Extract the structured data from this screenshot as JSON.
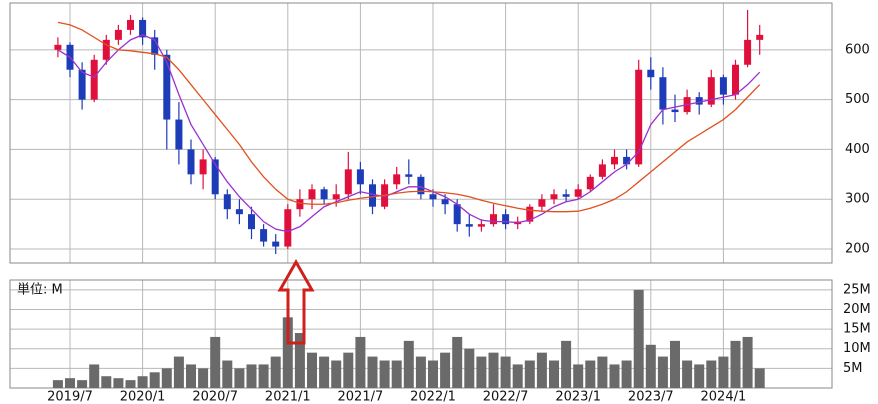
{
  "chart_data": {
    "type": "candlestick",
    "x": [
      "2019/6",
      "2019/7",
      "2019/8",
      "2019/9",
      "2019/10",
      "2019/11",
      "2019/12",
      "2020/1",
      "2020/2",
      "2020/3",
      "2020/4",
      "2020/5",
      "2020/6",
      "2020/7",
      "2020/8",
      "2020/9",
      "2020/10",
      "2020/11",
      "2020/12",
      "2021/1",
      "2021/2",
      "2021/3",
      "2021/4",
      "2021/5",
      "2021/6",
      "2021/7",
      "2021/8",
      "2021/9",
      "2021/10",
      "2021/11",
      "2021/12",
      "2022/1",
      "2022/2",
      "2022/3",
      "2022/4",
      "2022/5",
      "2022/6",
      "2022/7",
      "2022/8",
      "2022/9",
      "2022/10",
      "2022/11",
      "2022/12",
      "2023/1",
      "2023/2",
      "2023/3",
      "2023/4",
      "2023/5",
      "2023/6",
      "2023/7",
      "2023/8",
      "2023/9",
      "2023/10",
      "2023/11",
      "2023/12",
      "2024/1",
      "2024/2",
      "2024/3",
      "2024/4"
    ],
    "open": [
      600,
      610,
      560,
      500,
      580,
      620,
      640,
      660,
      625,
      590,
      460,
      400,
      350,
      380,
      310,
      280,
      270,
      240,
      215,
      205,
      280,
      300,
      320,
      300,
      310,
      360,
      330,
      285,
      330,
      350,
      345,
      310,
      300,
      290,
      250,
      245,
      250,
      270,
      250,
      255,
      285,
      300,
      310,
      305,
      320,
      345,
      370,
      385,
      370,
      560,
      545,
      480,
      475,
      505,
      490,
      545,
      510,
      570,
      620
    ],
    "high": [
      625,
      615,
      575,
      590,
      630,
      650,
      670,
      665,
      640,
      600,
      495,
      420,
      400,
      385,
      320,
      300,
      285,
      250,
      230,
      290,
      320,
      330,
      325,
      330,
      395,
      375,
      340,
      340,
      365,
      380,
      350,
      320,
      310,
      300,
      270,
      260,
      290,
      280,
      265,
      290,
      310,
      320,
      320,
      330,
      350,
      380,
      400,
      400,
      580,
      585,
      565,
      510,
      520,
      515,
      560,
      550,
      580,
      680,
      650
    ],
    "low": [
      585,
      545,
      480,
      495,
      570,
      610,
      630,
      610,
      560,
      400,
      370,
      330,
      320,
      300,
      260,
      250,
      220,
      205,
      190,
      200,
      265,
      280,
      290,
      285,
      300,
      310,
      270,
      280,
      320,
      330,
      300,
      285,
      270,
      235,
      225,
      235,
      245,
      240,
      240,
      250,
      275,
      290,
      295,
      300,
      315,
      340,
      360,
      360,
      365,
      520,
      450,
      455,
      470,
      470,
      485,
      490,
      500,
      565,
      590
    ],
    "close": [
      610,
      560,
      500,
      580,
      620,
      640,
      660,
      625,
      590,
      460,
      400,
      350,
      380,
      310,
      280,
      270,
      240,
      215,
      205,
      280,
      300,
      320,
      300,
      310,
      360,
      330,
      285,
      330,
      350,
      345,
      310,
      300,
      290,
      250,
      245,
      250,
      270,
      250,
      255,
      285,
      300,
      310,
      305,
      320,
      345,
      370,
      385,
      370,
      560,
      545,
      480,
      475,
      505,
      490,
      545,
      510,
      570,
      620,
      630
    ],
    "up_color": "#e0103c",
    "down_color": "#1c3cb8",
    "moving_averages": [
      {
        "color": "#9b30d0",
        "values": [
          600,
          585,
          555,
          545,
          575,
          600,
          620,
          630,
          620,
          575,
          510,
          450,
          410,
          370,
          335,
          305,
          280,
          255,
          240,
          235,
          245,
          265,
          285,
          295,
          305,
          315,
          310,
          305,
          315,
          325,
          325,
          315,
          305,
          290,
          270,
          258,
          255,
          255,
          253,
          258,
          270,
          285,
          295,
          300,
          315,
          335,
          355,
          370,
          395,
          450,
          480,
          485,
          490,
          495,
          500,
          505,
          510,
          530,
          555
        ]
      },
      {
        "color": "#e2501e",
        "values": [
          655,
          650,
          640,
          625,
          610,
          600,
          598,
          595,
          592,
          585,
          560,
          530,
          500,
          470,
          440,
          410,
          375,
          345,
          320,
          300,
          292,
          290,
          290,
          293,
          298,
          302,
          305,
          308,
          312,
          315,
          316,
          315,
          313,
          310,
          305,
          298,
          292,
          287,
          282,
          278,
          276,
          275,
          275,
          276,
          282,
          290,
          300,
          315,
          335,
          355,
          375,
          395,
          415,
          430,
          445,
          460,
          480,
          505,
          530
        ]
      }
    ],
    "ylim": [
      172,
      694
    ],
    "yticks": [
      200,
      300,
      400,
      500,
      600
    ],
    "xticks": [
      "2019/7",
      "2020/1",
      "2020/7",
      "2021/1",
      "2021/7",
      "2022/1",
      "2022/7",
      "2023/1",
      "2023/7",
      "2024/1"
    ],
    "volume": [
      2,
      2.5,
      2,
      6,
      3,
      2.5,
      2,
      3,
      4,
      5,
      8,
      6,
      5,
      13,
      7,
      5,
      6,
      6,
      8,
      18,
      14,
      9,
      8,
      7,
      9,
      13,
      8,
      7,
      7,
      12,
      8,
      7,
      9,
      13,
      10,
      8,
      9,
      8,
      6,
      7,
      9,
      7,
      12,
      6,
      7,
      8,
      6,
      7,
      25,
      11,
      8,
      12,
      7,
      6,
      7,
      8,
      12,
      13,
      5
    ],
    "volume_color": "#6a6a6a",
    "volume_unit_label": "単位: M",
    "volume_ylim": [
      0,
      27.5
    ],
    "volume_yticks": [
      {
        "value": 5,
        "label": "5M"
      },
      {
        "value": 10,
        "label": "10M"
      },
      {
        "value": 15,
        "label": "15M"
      },
      {
        "value": 20,
        "label": "20M"
      },
      {
        "value": 25,
        "label": "25M"
      }
    ],
    "grid": true
  }
}
